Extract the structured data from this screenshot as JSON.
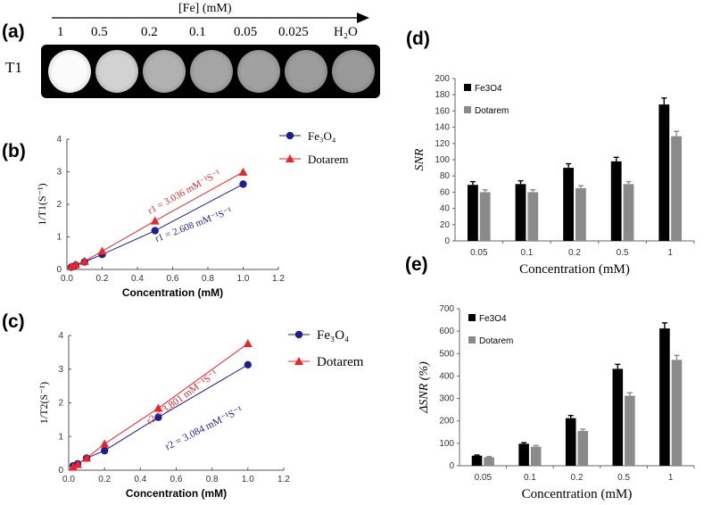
{
  "panels": {
    "a": "(a)",
    "b": "(b)",
    "c": "(c)",
    "d": "(d)",
    "e": "(e)"
  },
  "phantom": {
    "axis_label": "[Fe] (mM)",
    "row_label": "T1",
    "concentrations": [
      "1",
      "0.5",
      "0.2",
      "0.1",
      "0.05",
      "0.025",
      "H₂O"
    ],
    "brightness": [
      "#fbfbfb",
      "#d2d2d2",
      "#b1b1b1",
      "#a5a5a5",
      "#a1a1a1",
      "#9c9c9c",
      "#999999"
    ]
  },
  "colors": {
    "fe3o4_line": "#1f1f8c",
    "dotarem_line": "#e8252a",
    "bar_fe3o4": "#000000",
    "bar_dotarem": "#8a8a8a"
  },
  "chart_data": [
    {
      "id": "b",
      "type": "scatter",
      "title": "",
      "xlabel": "Concentration (mM)",
      "ylabel": "1/T1(S⁻¹)",
      "xlim": [
        0,
        1.2
      ],
      "ylim": [
        0,
        4
      ],
      "xticks": [
        "0.0",
        "0.2",
        "0.4",
        "0.6",
        "0.8",
        "1.0",
        "1.2"
      ],
      "yticks": [
        "0",
        "1",
        "2",
        "3",
        "4"
      ],
      "legend": [
        "Fe₃O₄",
        "Dotarem"
      ],
      "series": [
        {
          "name": "Fe3O4",
          "x": [
            0.025,
            0.05,
            0.1,
            0.2,
            0.5,
            1.0
          ],
          "y": [
            0.07,
            0.13,
            0.23,
            0.46,
            1.19,
            2.62
          ]
        },
        {
          "name": "Dotarem",
          "x": [
            0.025,
            0.05,
            0.1,
            0.2,
            0.5,
            1.0
          ],
          "y": [
            0.09,
            0.15,
            0.25,
            0.56,
            1.49,
            2.99
          ]
        }
      ],
      "annotations": {
        "dotarem": "r1 = 3.036 mM⁻¹S⁻¹",
        "fe3o4": "r1 = 2.608 mM⁻¹S⁻¹"
      }
    },
    {
      "id": "c",
      "type": "scatter",
      "title": "",
      "xlabel": "Concentration (mM)",
      "ylabel": "1/T2(S⁻¹)",
      "xlim": [
        0,
        1.2
      ],
      "ylim": [
        0,
        4
      ],
      "xticks": [
        "0.0",
        "0.2",
        "0.4",
        "0.6",
        "0.8",
        "1.0",
        "1.2"
      ],
      "yticks": [
        "0",
        "1",
        "2",
        "3",
        "4"
      ],
      "legend": [
        "Fe₃O₄",
        "Dotarem"
      ],
      "series": [
        {
          "name": "Fe3O4",
          "x": [
            0.025,
            0.05,
            0.1,
            0.2,
            0.5,
            1.0
          ],
          "y": [
            0.13,
            0.19,
            0.36,
            0.58,
            1.57,
            3.13
          ]
        },
        {
          "name": "Dotarem",
          "x": [
            0.025,
            0.05,
            0.1,
            0.2,
            0.5,
            1.0
          ],
          "y": [
            0.1,
            0.17,
            0.36,
            0.78,
            1.84,
            3.76
          ]
        }
      ],
      "annotations": {
        "dotarem": "r2 = 3.801 mM⁻¹S⁻¹",
        "fe3o4": "r2 = 3.084 mM⁻¹S⁻¹"
      }
    },
    {
      "id": "d",
      "type": "bar",
      "title": "",
      "xlabel": "Concentration (mM)",
      "ylabel": "SNR",
      "ylim": [
        0,
        200
      ],
      "yticks": [
        "0",
        "20",
        "40",
        "60",
        "80",
        "100",
        "120",
        "140",
        "160",
        "180",
        "200"
      ],
      "categories": [
        "0.05",
        "0.1",
        "0.2",
        "0.5",
        "1"
      ],
      "legend": [
        "Fe3O4",
        "Dotarem"
      ],
      "series": [
        {
          "name": "Fe3O4",
          "values": [
            69,
            70,
            90,
            98,
            168
          ],
          "errors": [
            4,
            4,
            5,
            5,
            8
          ]
        },
        {
          "name": "Dotarem",
          "values": [
            60,
            60,
            65,
            70,
            129
          ],
          "errors": [
            3,
            3,
            3,
            3,
            6
          ]
        }
      ]
    },
    {
      "id": "e",
      "type": "bar",
      "title": "",
      "xlabel": "Concentration (mM)",
      "ylabel": "ΔSNR (%)",
      "ylim": [
        0,
        700
      ],
      "yticks": [
        "0",
        "100",
        "200",
        "300",
        "400",
        "500",
        "600",
        "700"
      ],
      "categories": [
        "0.05",
        "0.1",
        "0.2",
        "0.5",
        "1"
      ],
      "legend": [
        "Fe3O4",
        "Dotarem"
      ],
      "series": [
        {
          "name": "Fe3O4",
          "values": [
            45,
            98,
            212,
            432,
            612
          ],
          "errors": [
            3,
            5,
            12,
            20,
            25
          ]
        },
        {
          "name": "Dotarem",
          "values": [
            38,
            85,
            155,
            312,
            472
          ],
          "errors": [
            3,
            5,
            8,
            13,
            20
          ]
        }
      ]
    }
  ]
}
